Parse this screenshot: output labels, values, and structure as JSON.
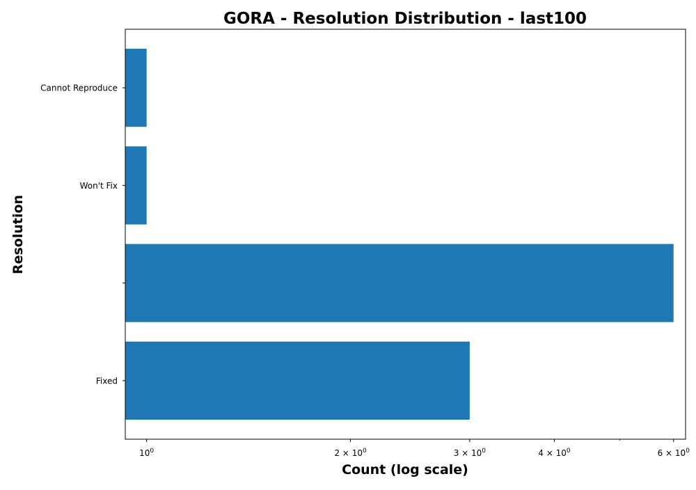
{
  "chart_data": {
    "type": "bar",
    "orientation": "horizontal",
    "title": "GORA - Resolution Distribution - last100",
    "xlabel": "Count (log scale)",
    "ylabel": "Resolution",
    "x_scale": "log",
    "xlim": [
      0.93,
      6.25
    ],
    "x_ticks": [
      {
        "value": 1,
        "label_base": "10",
        "label_exp": "0",
        "label_mult": ""
      },
      {
        "value": 2,
        "label_base": "10",
        "label_exp": "0",
        "label_mult": "2 × "
      },
      {
        "value": 3,
        "label_base": "10",
        "label_exp": "0",
        "label_mult": "3 × "
      },
      {
        "value": 4,
        "label_base": "10",
        "label_exp": "0",
        "label_mult": "4 × "
      },
      {
        "value": 6,
        "label_base": "10",
        "label_exp": "0",
        "label_mult": "6 × "
      }
    ],
    "x_minor_ticks": [
      5
    ],
    "categories": [
      "Fixed",
      "",
      "Won't Fix",
      "Cannot Reproduce"
    ],
    "values": [
      3,
      6,
      1,
      1
    ],
    "bar_color": "#1f77b4",
    "grid": false,
    "legend": "none"
  }
}
